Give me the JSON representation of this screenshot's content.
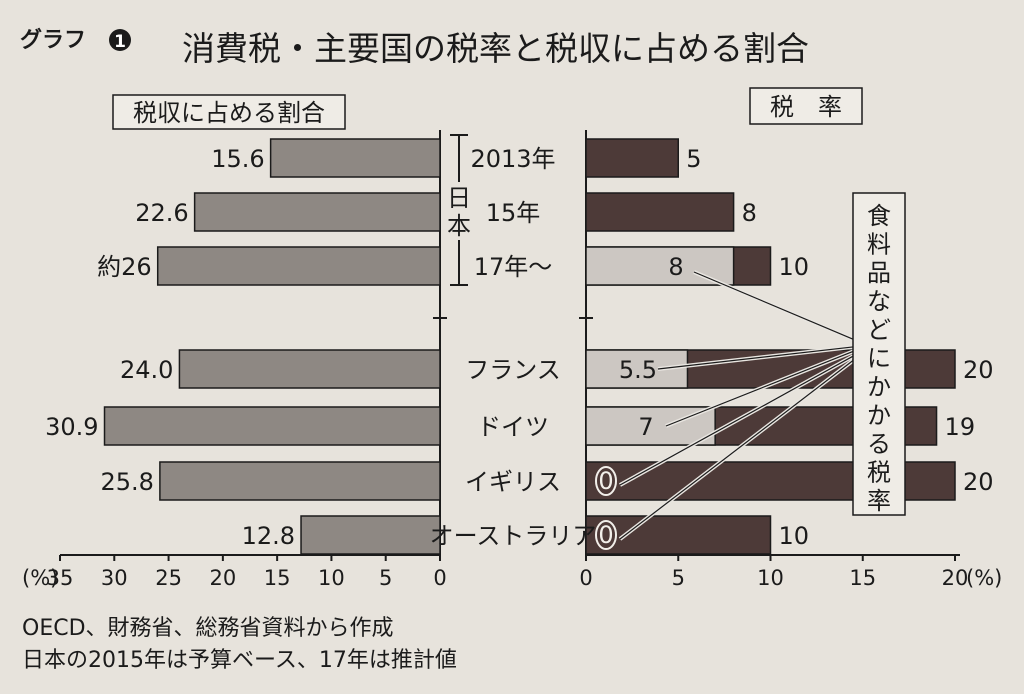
{
  "graph_label": "グラフ",
  "graph_number": "1",
  "title": "消費税・主要国の税率と税収に占める割合",
  "left_panel_title": "税収に占める割合",
  "right_panel_title": "税　率",
  "japan_label": "日本",
  "food_label": "食料品などにかかる税率",
  "left_axis_unit": "(%)",
  "right_axis_unit": "(%)",
  "footnotes": [
    "OECD、財務省、総務省資料から作成",
    "日本の2015年は予算ベース、17年は推計値"
  ],
  "colors": {
    "background": "#e7e3dc",
    "share_bar": "#8e8883",
    "standard_rate_bar": "#4d3a38",
    "food_rate_bar": "#ccc7c2"
  },
  "chart_data": [
    {
      "type": "bar",
      "orientation": "horizontal",
      "direction": "right-to-left",
      "title": "税収に占める割合",
      "xlim": [
        0,
        35
      ],
      "xticks": [
        35,
        30,
        25,
        20,
        15,
        10,
        5,
        0
      ],
      "unit": "%",
      "categories": [
        "2013年",
        "15年",
        "17年〜",
        "フランス",
        "ドイツ",
        "イギリス",
        "オーストラリア"
      ],
      "values": [
        15.6,
        22.6,
        26,
        24.0,
        30.9,
        25.8,
        12.8
      ],
      "value_labels": [
        "15.6",
        "22.6",
        "約26",
        "24.0",
        "30.9",
        "25.8",
        "12.8"
      ]
    },
    {
      "type": "bar",
      "orientation": "horizontal",
      "title": "税率",
      "xlim": [
        0,
        20
      ],
      "xticks": [
        0,
        5,
        10,
        15,
        20
      ],
      "unit": "%",
      "categories": [
        "2013年",
        "15年",
        "17年〜",
        "フランス",
        "ドイツ",
        "イギリス",
        "オーストラリア"
      ],
      "series": [
        {
          "values": [
            5,
            8,
            10,
            20,
            19,
            20,
            10
          ],
          "value_labels": [
            "5",
            "8",
            "10",
            "20",
            "19",
            "20",
            "10"
          ]
        },
        {
          "name": "食料品などにかかる税率",
          "values": [
            null,
            null,
            8,
            5.5,
            7,
            0,
            0
          ],
          "value_labels": [
            "",
            "",
            "8",
            "5.5",
            "7",
            "0",
            "0"
          ]
        }
      ]
    }
  ]
}
